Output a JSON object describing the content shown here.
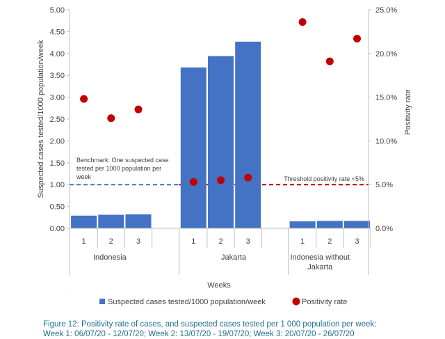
{
  "chart_data": {
    "type": "bar",
    "x_label": "Weeks",
    "y_label": "Suspected cases tested/1000 population/week",
    "y2_label": "Positivity rate",
    "ylim": [
      0,
      5
    ],
    "y_ticks": [
      "0.00",
      "0.50",
      "1.00",
      "1.50",
      "2.00",
      "2.50",
      "3.00",
      "3.50",
      "4.00",
      "4.50",
      "5.00"
    ],
    "y2lim": [
      0,
      25
    ],
    "y2_ticks": [
      "0.0%",
      "5.0%",
      "10.0%",
      "15.0%",
      "20.0%",
      "25.0%"
    ],
    "groups": [
      {
        "label_lines": [
          "Indonesia"
        ],
        "weeks": [
          "1",
          "2",
          "3"
        ],
        "tests": [
          0.29,
          0.31,
          0.32
        ],
        "positivity": [
          14.8,
          12.6,
          13.6
        ]
      },
      {
        "label_lines": [
          "Jakarta"
        ],
        "weeks": [
          "1",
          "2",
          "3"
        ],
        "tests": [
          3.68,
          3.94,
          4.27
        ],
        "positivity": [
          5.3,
          5.5,
          5.8
        ]
      },
      {
        "label_lines": [
          "Indonesia without",
          "Jakarta"
        ],
        "weeks": [
          "1",
          "2",
          "3"
        ],
        "tests": [
          0.16,
          0.17,
          0.17
        ],
        "positivity": [
          23.6,
          19.1,
          21.7
        ]
      }
    ],
    "series": [
      {
        "name": "Suspected cases tested/1000 population/week",
        "type": "bar",
        "axis": "left",
        "color": "#4472c4"
      },
      {
        "name": "Positivity rate",
        "type": "scatter",
        "axis": "right",
        "color": "#c00000"
      }
    ],
    "reference_lines": [
      {
        "axis": "left",
        "value": 1.0,
        "color": "#4472c4",
        "style": "dashed",
        "label_lines": [
          "Benchmark: One suspected case",
          "tested per 1000 population per",
          "week"
        ]
      },
      {
        "axis": "right",
        "value": 5.0,
        "color": "#c00000",
        "style": "dashed",
        "label_lines": [
          "Threshold positivity rate <5%"
        ]
      }
    ],
    "legend_position": "bottom",
    "grid": false
  },
  "caption": {
    "line1": "Figure 12: Positivity rate of cases, and suspected cases tested per 1 000 population per week:",
    "line2": "Week 1: 06/07/20 - 12/07/20; Week 2: 13/07/20 - 19/07/20; Week 3: 20/07/20 - 26/07/20"
  }
}
